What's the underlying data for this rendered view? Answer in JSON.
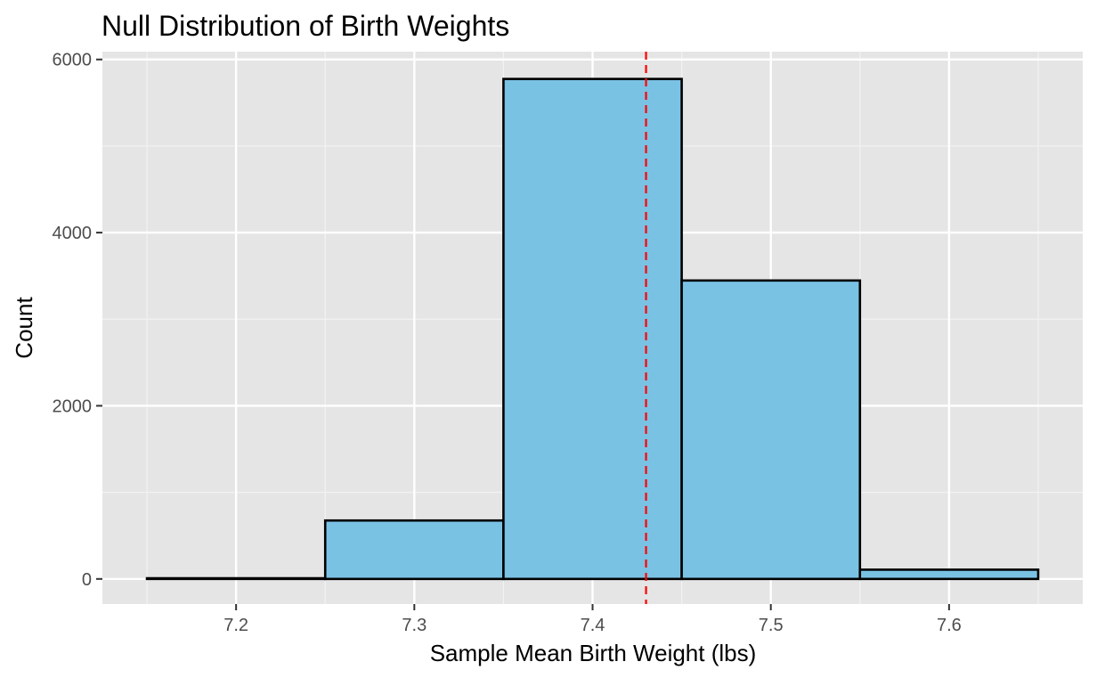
{
  "chart_data": {
    "type": "bar",
    "title": "Null Distribution of Birth Weights",
    "xlabel": "Sample Mean Birth Weight (lbs)",
    "ylabel": "Count",
    "bins": [
      {
        "x0": 7.15,
        "x1": 7.25,
        "count": 8
      },
      {
        "x0": 7.25,
        "x1": 7.35,
        "count": 675
      },
      {
        "x0": 7.35,
        "x1": 7.45,
        "count": 5775
      },
      {
        "x0": 7.45,
        "x1": 7.55,
        "count": 3447
      },
      {
        "x0": 7.55,
        "x1": 7.65,
        "count": 107
      }
    ],
    "reference_line": {
      "x": 7.43,
      "color": "#ff0000",
      "style": "dashed"
    },
    "xlim": [
      7.125,
      7.675
    ],
    "ylim": [
      -290,
      6090
    ],
    "x_ticks": [
      7.2,
      7.3,
      7.4,
      7.5,
      7.6
    ],
    "x_tick_labels": [
      "7.2",
      "7.3",
      "7.4",
      "7.5",
      "7.6"
    ],
    "y_ticks": [
      0,
      2000,
      4000,
      6000
    ],
    "y_tick_labels": [
      "0",
      "2000",
      "4000",
      "6000"
    ],
    "bar_fill": "#7ac2e4",
    "bar_outline": "#000000",
    "panel_background": "#e5e5e5",
    "grid": true
  }
}
